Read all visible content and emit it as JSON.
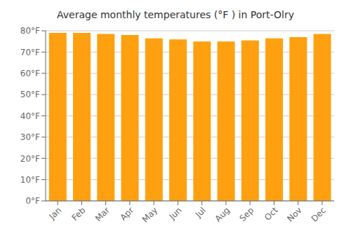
{
  "chart_data": {
    "type": "bar",
    "title": "Average monthly temperatures (°F ) in Port-Olry",
    "categories": [
      "Jan",
      "Feb",
      "Mar",
      "Apr",
      "May",
      "Jun",
      "Jul",
      "Aug",
      "Sep",
      "Oct",
      "Nov",
      "Dec"
    ],
    "values": [
      79,
      79,
      78.5,
      78,
      76.5,
      76,
      75,
      75,
      75.5,
      76.5,
      77,
      78.5
    ],
    "color": "#FFA010",
    "ylim": [
      0,
      80
    ],
    "yticks": [
      {
        "value": 0,
        "label": "0°F"
      },
      {
        "value": 10,
        "label": "10°F"
      },
      {
        "value": 20,
        "label": "20°F"
      },
      {
        "value": 30,
        "label": "30°F"
      },
      {
        "value": 40,
        "label": "40°F"
      },
      {
        "value": 50,
        "label": "50°F"
      },
      {
        "value": 60,
        "label": "60°F"
      },
      {
        "value": 70,
        "label": "70°F"
      },
      {
        "value": 80,
        "label": "80°F"
      }
    ],
    "grid": true
  }
}
